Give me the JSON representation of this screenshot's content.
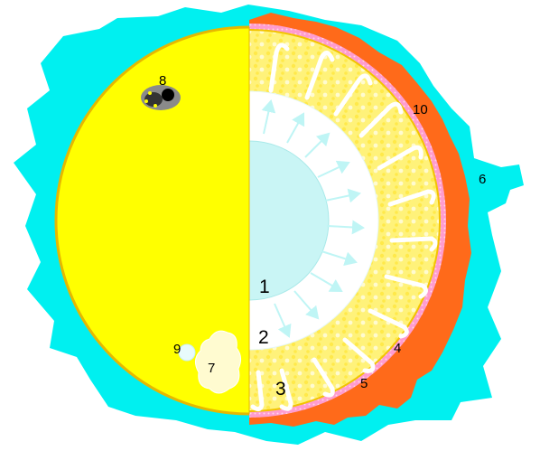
{
  "labels": {
    "core": "1",
    "radiative_zone": "2",
    "convective_zone": "3",
    "photosphere": "4",
    "chromosphere": "5",
    "corona": "6",
    "granule": "7",
    "sunspot": "8",
    "faculae": "9",
    "prominence": "10"
  },
  "colors": {
    "corona": "#00f0f0",
    "surface": "#ffff00",
    "surface_edge": "#e6b800",
    "core": "#c9f5f5",
    "radiative": "#ffffff",
    "convective": "#fff27a",
    "chromosphere_band": "#ff99cc",
    "flame": "#ff6a1a",
    "arrow": "#bff5f5",
    "spot": "#000000"
  },
  "icons": [
    "radiation-arrow-icon",
    "convection-hook-icon",
    "sunspot-icon",
    "flame-icon"
  ]
}
